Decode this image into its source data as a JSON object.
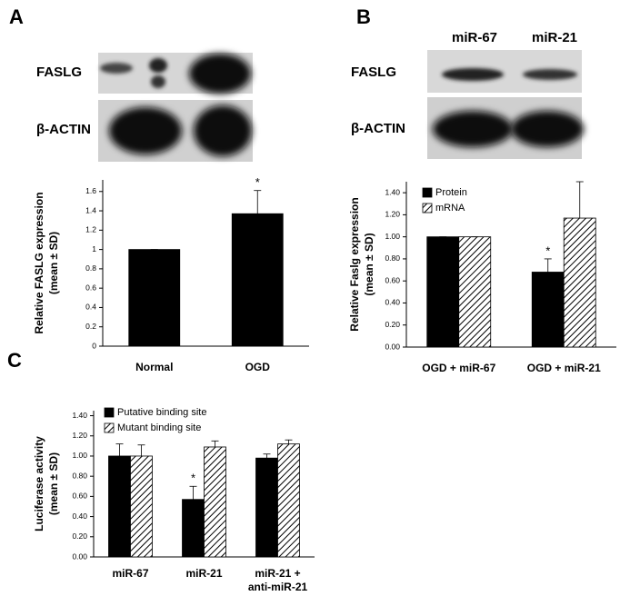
{
  "panel_labels": [
    "A",
    "B",
    "C"
  ],
  "blots": [
    {
      "rows": [
        "FASLG",
        "β-ACTIN"
      ]
    },
    {
      "lanes": [
        "miR-67",
        "miR-21"
      ],
      "rows": [
        "FASLG",
        "β-ACTIN"
      ]
    }
  ],
  "chart_data": [
    {
      "type": "bar",
      "y_label": [
        "Relative FASLG expression",
        "(mean ± SD)"
      ],
      "categories": [
        "Normal",
        "OGD"
      ],
      "series": [
        {
          "color": "#000000",
          "values": [
            1,
            1.37
          ],
          "errors": [
            0,
            0.24
          ]
        }
      ],
      "annotations": [
        {
          "text": "*",
          "category": "OGD"
        }
      ],
      "ylim": [
        0,
        1.72
      ],
      "yticks": [
        0,
        0.2,
        0.4,
        0.6,
        0.8,
        1,
        1.2,
        1.4,
        1.6
      ]
    },
    {
      "type": "bar",
      "y_label": [
        "Relative Faslg expression",
        "(mean ± SD)"
      ],
      "categories": [
        "OGD + miR-67",
        "OGD + miR-21"
      ],
      "series": [
        {
          "name": "Protein",
          "color": "#000000",
          "values": [
            1.0,
            0.68
          ],
          "errors": [
            0,
            0.12
          ]
        },
        {
          "name": "mRNA",
          "color": "#000000",
          "hatch": true,
          "values": [
            1.0,
            1.17
          ],
          "errors": [
            0,
            0.33
          ]
        }
      ],
      "annotations": [
        {
          "text": "*",
          "category": "OGD + miR-21",
          "series": "Protein"
        }
      ],
      "ylim": [
        0,
        1.5
      ],
      "yticks": [
        {
          "value": 0,
          "label": "0.00"
        },
        {
          "value": 0.2,
          "label": "0.20"
        },
        {
          "value": 0.4,
          "label": "0.40"
        },
        {
          "value": 0.6,
          "label": "0.60"
        },
        {
          "value": 0.8,
          "label": "0.80"
        },
        {
          "value": 1,
          "label": "1.00"
        },
        {
          "value": 1.2,
          "label": "1.20"
        },
        {
          "value": 1.4,
          "label": "1.40"
        }
      ]
    },
    {
      "type": "bar",
      "y_label": [
        "Luciferase activity",
        "(mean ± SD)"
      ],
      "categories": [
        [
          "miR-67"
        ],
        [
          "miR-21"
        ],
        [
          "miR-21 +",
          "anti-miR-21"
        ]
      ],
      "series": [
        {
          "name": "Putative binding site",
          "color": "#000000",
          "values": [
            1.0,
            0.57,
            0.98
          ],
          "errors": [
            0.12,
            0.13,
            0.04
          ]
        },
        {
          "name": "Mutant binding site",
          "color": "#000000",
          "hatch": true,
          "values": [
            1.0,
            1.09,
            1.12
          ],
          "errors": [
            0.11,
            0.06,
            0.04
          ]
        }
      ],
      "annotations": [
        {
          "text": "*",
          "category": "miR-21",
          "series": "Putative binding site"
        }
      ],
      "ylim": [
        0,
        1.45
      ],
      "yticks": [
        {
          "value": 0,
          "label": "0.00"
        },
        {
          "value": 0.2,
          "label": "0.20"
        },
        {
          "value": 0.4,
          "label": "0.40"
        },
        {
          "value": 0.6,
          "label": "0.60"
        },
        {
          "value": 0.8,
          "label": "0.80"
        },
        {
          "value": 1,
          "label": "1.00"
        },
        {
          "value": 1.2,
          "label": "1.20"
        },
        {
          "value": 1.4,
          "label": "1.40"
        }
      ]
    }
  ]
}
